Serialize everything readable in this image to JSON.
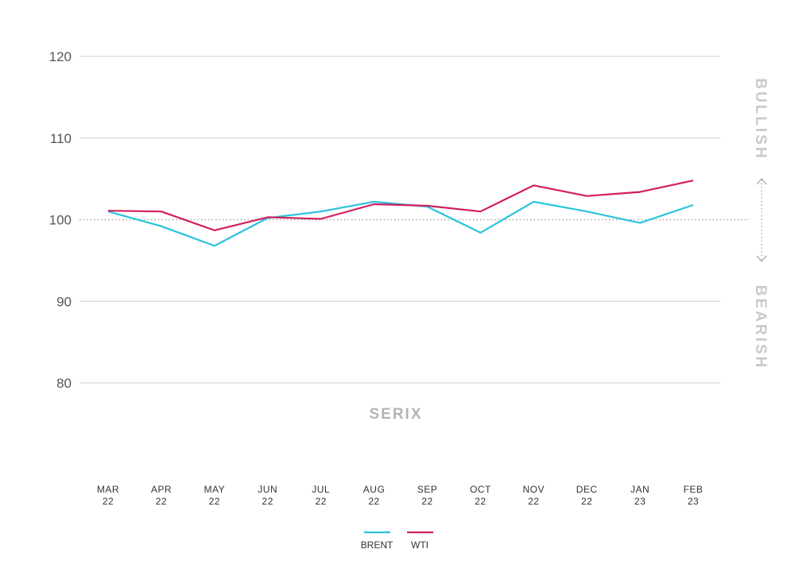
{
  "chart_data": {
    "type": "line",
    "xlabel": "SERIX",
    "ylabel": "",
    "ylim": [
      80,
      120
    ],
    "yticks": [
      80,
      90,
      100,
      110,
      120
    ],
    "categories": [
      [
        "MAR",
        "22"
      ],
      [
        "APR",
        "22"
      ],
      [
        "MAY",
        "22"
      ],
      [
        "JUN",
        "22"
      ],
      [
        "JUL",
        "22"
      ],
      [
        "AUG",
        "22"
      ],
      [
        "SEP",
        "22"
      ],
      [
        "OCT",
        "22"
      ],
      [
        "NOV",
        "22"
      ],
      [
        "DEC",
        "22"
      ],
      [
        "JAN",
        "23"
      ],
      [
        "FEB",
        "23"
      ]
    ],
    "reference_line": 100,
    "side_labels": {
      "top": "BULLISH",
      "bottom": "BEARISH"
    },
    "grid": true,
    "legend_position": "bottom-center",
    "series": [
      {
        "name": "BRENT",
        "color": "#2bc3dd",
        "values": [
          101.0,
          99.2,
          96.8,
          100.2,
          101.0,
          102.2,
          101.6,
          98.4,
          102.2,
          101.0,
          99.6,
          101.8
        ]
      },
      {
        "name": "WTI",
        "color": "#d21f5b",
        "values": [
          101.1,
          101.0,
          98.7,
          100.3,
          100.1,
          101.9,
          101.7,
          101.0,
          104.2,
          102.9,
          103.4,
          104.8
        ]
      }
    ]
  }
}
